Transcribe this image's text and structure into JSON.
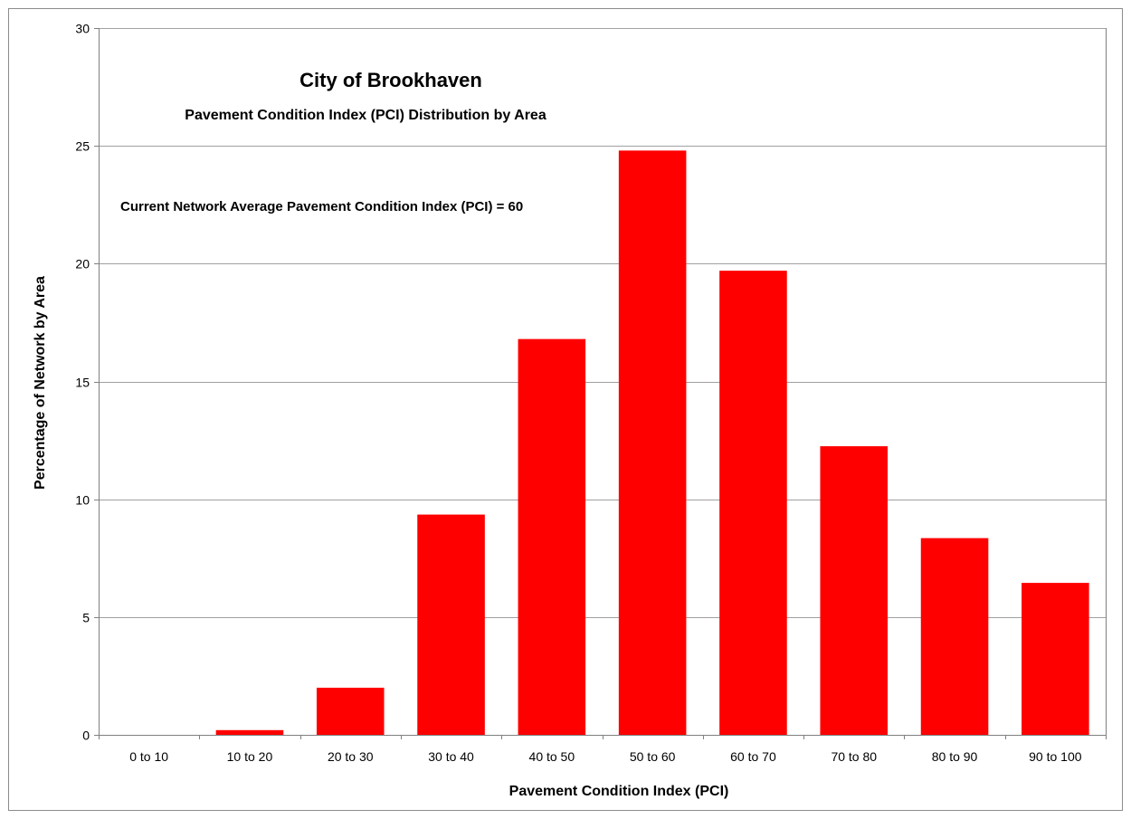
{
  "chart_data": {
    "type": "bar",
    "title": "City of Brookhaven",
    "subtitle": "Pavement Condition Index (PCI) Distribution by Area",
    "annotation": "Current Network Average Pavement Condition Index (PCI) = 60",
    "xlabel": "Pavement Condition Index (PCI)",
    "ylabel": "Percentage of Network by Area",
    "categories": [
      "0 to 10",
      "10 to 20",
      "20 to 30",
      "30 to 40",
      "40 to 50",
      "50 to 60",
      "60 to 70",
      "70 to 80",
      "80 to 90",
      "90 to 100"
    ],
    "values": [
      0,
      0.2,
      2.0,
      9.35,
      16.8,
      24.8,
      19.7,
      12.25,
      8.35,
      6.45
    ],
    "ylim": [
      0,
      30
    ],
    "yticks": [
      0,
      5,
      10,
      15,
      20,
      25,
      30
    ],
    "grid": true,
    "legend": "none",
    "bar_color": "#ff0000",
    "grid_color": "#a0a0a0"
  }
}
